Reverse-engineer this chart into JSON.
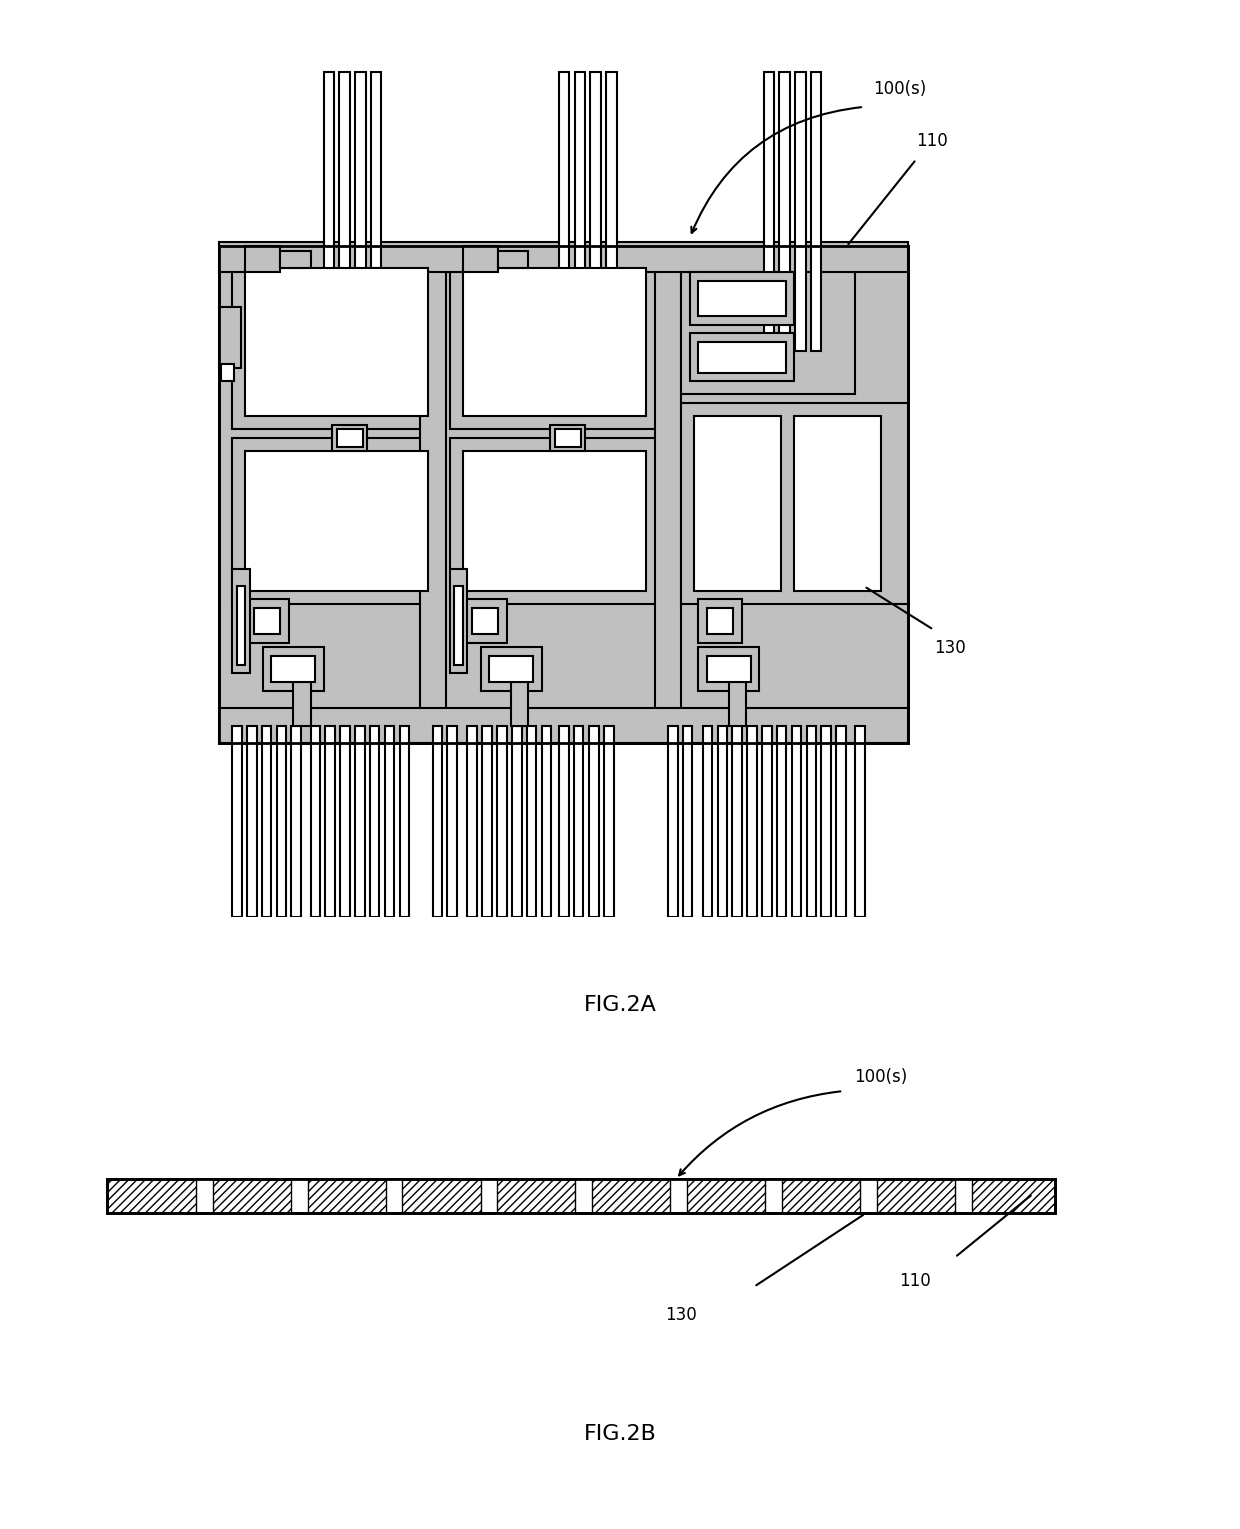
{
  "fig_width": 12.4,
  "fig_height": 15.29,
  "dpi": 100,
  "bg_color": "#ffffff",
  "gray_fill": "#c0c0c0",
  "white_fill": "#ffffff",
  "black": "#000000",
  "label_100s_2A": "100(s)",
  "label_110_2A": "110",
  "label_130_2A": "130",
  "label_100s_2B": "100(s)",
  "label_110_2B": "110",
  "label_130_2B": "130",
  "fig2A_title": "FIG.2A",
  "fig2B_title": "FIG.2B",
  "lw_thin": 1.0,
  "lw_med": 1.5,
  "lw_thick": 2.0
}
